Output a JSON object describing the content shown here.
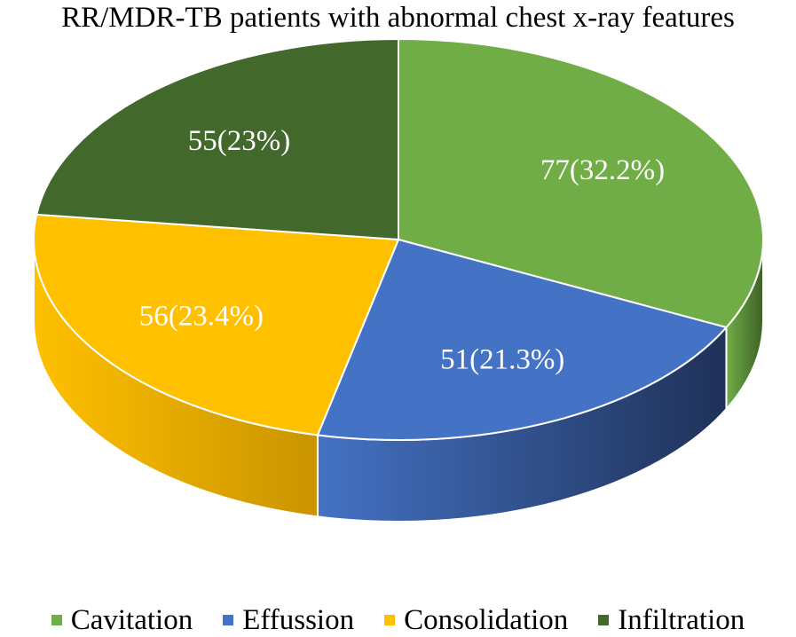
{
  "chart_data": {
    "type": "pie",
    "title": "RR/MDR-TB patients with abnormal chest x-ray features",
    "legend_position": "bottom",
    "slices": [
      {
        "label": "Cavitation",
        "value": 77,
        "percent": 32.2,
        "data_label": "77(32.2%)",
        "color": "#70ad47",
        "side_color": "#3e6126",
        "label_color": "#ffffff"
      },
      {
        "label": "Effussion",
        "value": 51,
        "percent": 21.3,
        "data_label": "51(21.3%)",
        "color": "#4472c4",
        "side_color": "#1f3158",
        "label_color": "#ffffff"
      },
      {
        "label": "Consolidation",
        "value": 56,
        "percent": 23.4,
        "data_label": "56(23.4%)",
        "color": "#ffc000",
        "side_color": "#c99400",
        "label_color": "#ffffff"
      },
      {
        "label": "Infiltration",
        "value": 55,
        "percent": 23.0,
        "data_label": "55(23%)",
        "color": "#43682b",
        "side_color": "#2b431b",
        "label_color": "#ffffff"
      }
    ]
  }
}
